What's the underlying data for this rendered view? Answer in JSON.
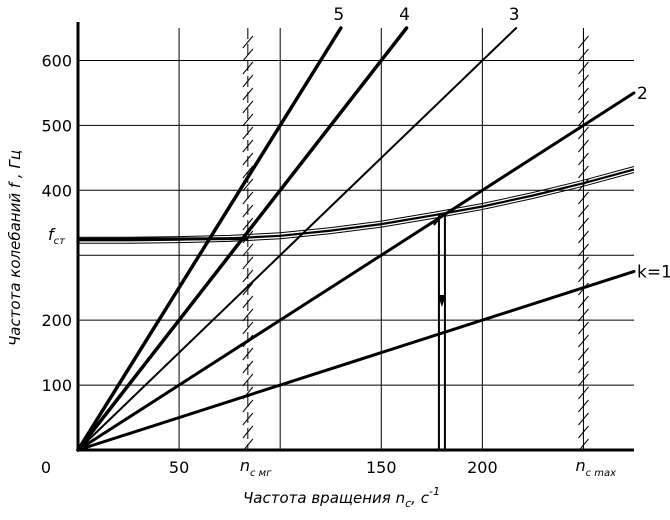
{
  "chart_data": {
    "type": "line",
    "title": "",
    "xlabel": "Частота вращения n",
    "xlabel_sub": "с",
    "xlabel_unit": ", с",
    "xlabel_unit_sup": "-1",
    "ylabel": "Частота колебаний  f , Гц",
    "xlim": [
      0,
      275
    ],
    "ylim": [
      0,
      650
    ],
    "x_ticks": [
      {
        "value": 0,
        "label": "0"
      },
      {
        "value": 50,
        "label": "50"
      },
      {
        "value": 150,
        "label": "150"
      },
      {
        "value": 200,
        "label": "200"
      }
    ],
    "x_special_ticks": [
      {
        "value": 84,
        "main": "n",
        "sub": "с мг"
      },
      {
        "value": 250,
        "main": "n",
        "sub": "с max"
      }
    ],
    "y_ticks": [
      {
        "value": 100,
        "label": "100"
      },
      {
        "value": 200,
        "label": "200"
      },
      {
        "value": 400,
        "label": "400"
      },
      {
        "value": 500,
        "label": "500"
      },
      {
        "value": 600,
        "label": "600"
      }
    ],
    "y_special_tick": {
      "value": 320,
      "main": "f",
      "sub": "ст"
    },
    "grid_x": [
      0,
      50,
      100,
      150,
      200,
      250
    ],
    "grid_y": [
      100,
      200,
      300,
      400,
      500,
      600
    ],
    "grid": true,
    "rays": [
      {
        "name": "k=1",
        "label_side": "right",
        "points": [
          [
            0,
            0
          ],
          [
            275,
            275
          ]
        ]
      },
      {
        "name": "2",
        "label_side": "right",
        "points": [
          [
            0,
            0
          ],
          [
            275,
            550
          ]
        ]
      },
      {
        "name": "3",
        "label_side": "top",
        "points": [
          [
            0,
            0
          ],
          [
            216.7,
            650
          ]
        ]
      },
      {
        "name": "4",
        "label_side": "top",
        "points": [
          [
            0,
            0
          ],
          [
            162.5,
            650
          ]
        ]
      },
      {
        "name": "5",
        "label_side": "top",
        "points": [
          [
            0,
            0
          ],
          [
            130,
            650
          ]
        ]
      }
    ],
    "frequency_curve": [
      [
        0,
        323
      ],
      [
        25,
        323
      ],
      [
        50,
        324
      ],
      [
        75,
        326
      ],
      [
        100,
        330
      ],
      [
        125,
        338
      ],
      [
        150,
        348
      ],
      [
        175,
        361
      ],
      [
        200,
        375
      ],
      [
        225,
        392
      ],
      [
        250,
        411
      ],
      [
        275,
        432
      ]
    ],
    "operating_point": {
      "x": 180,
      "y": 362
    },
    "limit_lines": [
      84,
      250
    ]
  }
}
